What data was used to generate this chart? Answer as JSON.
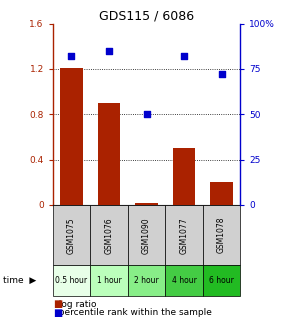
{
  "title": "GDS115 / 6086",
  "categories": [
    "GSM1075",
    "GSM1076",
    "GSM1090",
    "GSM1077",
    "GSM1078"
  ],
  "time_labels": [
    "0.5 hour",
    "1 hour",
    "2 hour",
    "4 hour",
    "6 hour"
  ],
  "log_ratio": [
    1.21,
    0.9,
    0.02,
    0.5,
    0.2
  ],
  "percentile": [
    82,
    85,
    50,
    82,
    72
  ],
  "bar_color": "#aa2200",
  "dot_color": "#0000cc",
  "left_ylim": [
    0,
    1.6
  ],
  "right_ylim": [
    0,
    100
  ],
  "left_yticks": [
    0,
    0.4,
    0.8,
    1.2,
    1.6
  ],
  "right_yticks": [
    0,
    25,
    50,
    75,
    100
  ],
  "left_yticklabels": [
    "0",
    "0.4",
    "0.8",
    "1.2",
    "1.6"
  ],
  "right_yticklabels": [
    "0",
    "25",
    "50",
    "75",
    "100%"
  ],
  "grid_values": [
    0.4,
    0.8,
    1.2
  ],
  "bar_width": 0.6,
  "gsm_bg_color": "#d0d0d0",
  "time_greens": [
    "#e8ffe8",
    "#bbffbb",
    "#88ee88",
    "#44cc44",
    "#22bb22"
  ],
  "legend_log_ratio": "log ratio",
  "legend_percentile": "percentile rank within the sample",
  "time_label": "time"
}
